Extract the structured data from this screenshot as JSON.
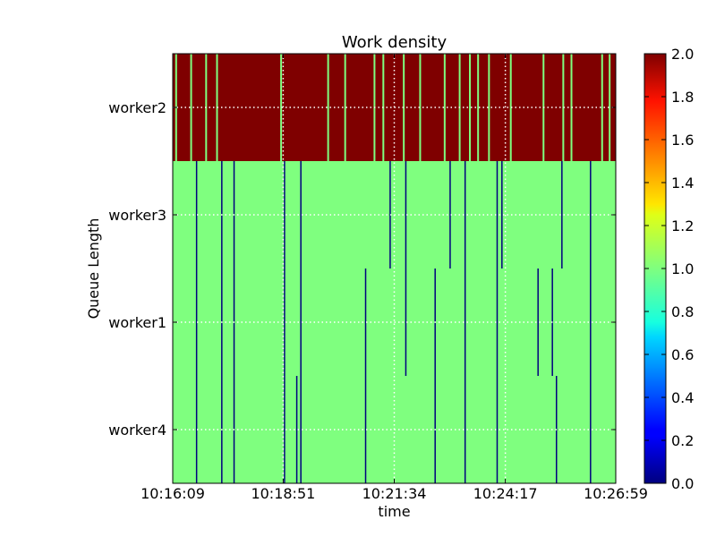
{
  "chart_data": {
    "type": "heatmap",
    "title": "Work density",
    "xlabel": "time",
    "ylabel": "Queue Length",
    "x_tick_labels": [
      "10:16:09",
      "10:18:51",
      "10:21:34",
      "10:24:17",
      "10:26:59"
    ],
    "y_categories_top_to_bottom": [
      "worker2",
      "worker3",
      "worker1",
      "worker4"
    ],
    "colorbar": {
      "colormap": "jet",
      "range": [
        0.0,
        2.0
      ],
      "tick_labels": [
        "0.0",
        "0.2",
        "0.4",
        "0.6",
        "0.8",
        "1.0",
        "1.2",
        "1.4",
        "1.6",
        "1.8",
        "2.0"
      ]
    },
    "background_values": {
      "worker2": 2.0,
      "worker3": 1.0,
      "worker1": 1.0,
      "worker4": 1.0
    },
    "grid": true,
    "row_colors": {
      "2.0": "#7f0000",
      "1.0": "#7fff7f",
      "0.0": "#00007f"
    },
    "gaps_in_worker2": [
      "10:16:14",
      "10:16:36",
      "10:16:58",
      "10:17:14",
      "10:18:48",
      "10:19:57",
      "10:20:22",
      "10:21:05",
      "10:21:18",
      "10:21:48",
      "10:22:12",
      "10:22:48",
      "10:23:10",
      "10:23:25",
      "10:23:37",
      "10:23:53",
      "10:24:25",
      "10:25:13",
      "10:25:42",
      "10:25:54",
      "10:26:39",
      "10:26:50"
    ],
    "zero_markers": [
      {
        "time": "10:16:44",
        "rows": [
          "worker3",
          "worker1",
          "worker4"
        ]
      },
      {
        "time": "10:17:21",
        "rows": [
          "worker3",
          "worker1",
          "worker4"
        ]
      },
      {
        "time": "10:17:39",
        "rows": [
          "worker3",
          "worker1",
          "worker4"
        ]
      },
      {
        "time": "10:18:53",
        "rows": [
          "worker3",
          "worker1",
          "worker4"
        ]
      },
      {
        "time": "10:19:11",
        "rows": [
          "worker4"
        ]
      },
      {
        "time": "10:19:17",
        "rows": [
          "worker3",
          "worker1",
          "worker4"
        ]
      },
      {
        "time": "10:20:52",
        "rows": [
          "worker1",
          "worker4"
        ]
      },
      {
        "time": "10:21:28",
        "rows": [
          "worker3"
        ]
      },
      {
        "time": "10:21:51",
        "rows": [
          "worker3",
          "worker1"
        ]
      },
      {
        "time": "10:22:34",
        "rows": [
          "worker1",
          "worker4"
        ]
      },
      {
        "time": "10:22:56",
        "rows": [
          "worker3"
        ]
      },
      {
        "time": "10:23:18",
        "rows": [
          "worker3",
          "worker1",
          "worker4"
        ]
      },
      {
        "time": "10:24:05",
        "rows": [
          "worker3",
          "worker1",
          "worker4"
        ]
      },
      {
        "time": "10:24:12",
        "rows": [
          "worker3"
        ]
      },
      {
        "time": "10:25:05",
        "rows": [
          "worker1"
        ]
      },
      {
        "time": "10:25:26",
        "rows": [
          "worker1"
        ]
      },
      {
        "time": "10:25:32",
        "rows": [
          "worker4"
        ]
      },
      {
        "time": "10:25:40",
        "rows": [
          "worker3"
        ]
      },
      {
        "time": "10:26:22",
        "rows": [
          "worker3",
          "worker1",
          "worker4"
        ]
      }
    ]
  }
}
